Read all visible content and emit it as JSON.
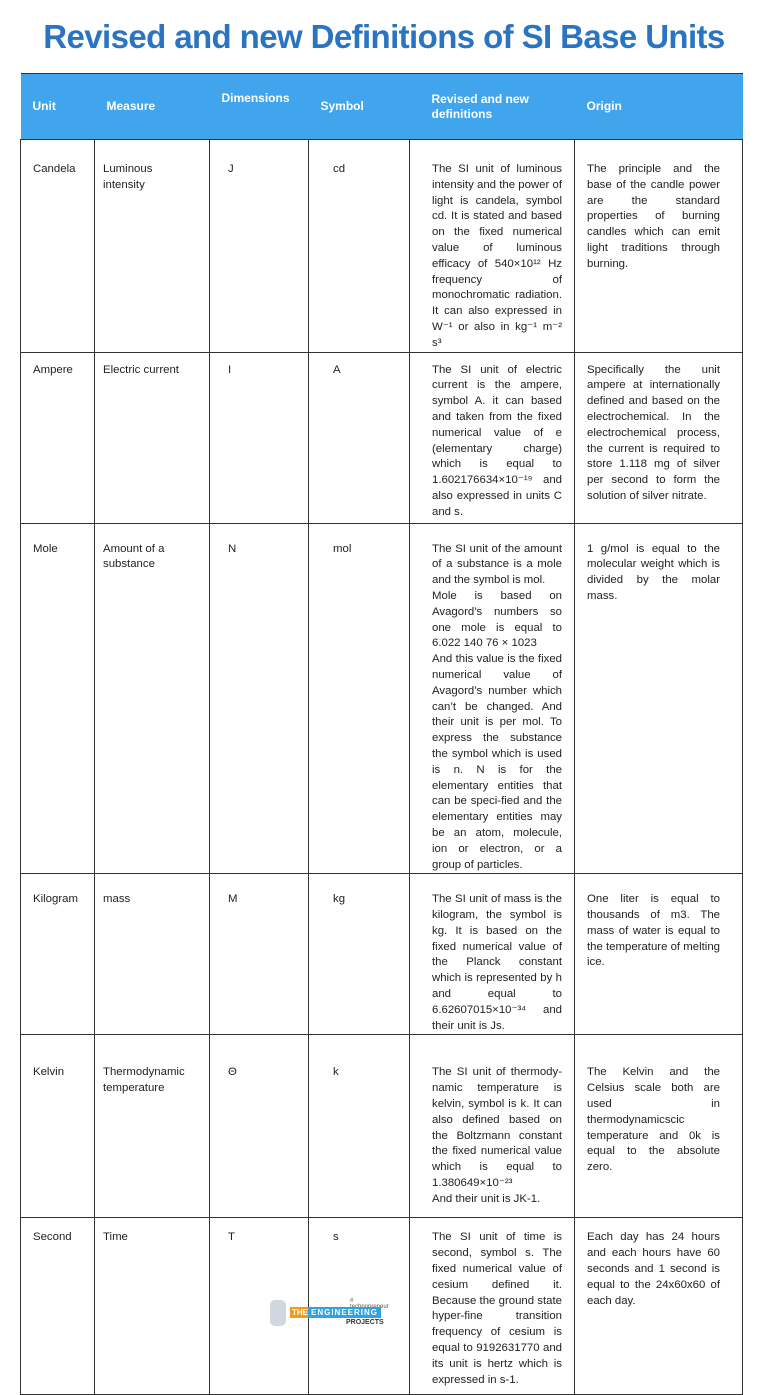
{
  "title": "Revised and new Definitions of SI Base Units",
  "headers": {
    "unit": "Unit",
    "measure": "Measure",
    "dimensions": "Dimensions",
    "symbol": "Symbol",
    "definition": "Revised and new definitions",
    "origin": "Origin"
  },
  "rows": [
    {
      "unit": "Candela",
      "measure": "Luminous intensity",
      "dimension": "J",
      "symbol": "cd",
      "definition": "The SI unit of luminous intensity and the power of light is candela, symbol cd. It is stated and based on the fixed numerical value of luminous efficacy of 540×10¹² Hz frequency of monochromatic radiation. It can also expressed in W⁻¹ or also in kg⁻¹ m⁻² s³",
      "origin": "The principle and the base of the candle power are the standard properties of burning candles which can emit light traditions through burning."
    },
    {
      "unit": "Ampere",
      "measure": "Electric current",
      "dimension": "I",
      "symbol": "A",
      "definition": "The SI unit of electric current is the ampere, symbol A. it can based and taken from the fixed numerical value of e (elementary charge) which is equal to 1.602176634×10⁻¹⁹ and also expressed in units C and s.",
      "origin": "Specifically the unit ampere at internationally defined and based on the electrochemical. In the electrochemical process, the current is required to store 1.118 mg of silver per second to form the solution of silver nitrate."
    },
    {
      "unit": "Mole",
      "measure": "Amount of a substance",
      "dimension": "N",
      "symbol": "mol",
      "definition": "The SI unit of the amount of a substance is a mole and the symbol is mol.\nMole is based on Avagord’s numbers so one mole is equal to 6.022 140 76 × 1023\nAnd this value is the fixed numerical value of Avagord’s number which can’t be changed. And their unit is per mol. To express the substance the symbol which is used is n. N is for the elementary entities that can be speci-fied and the elementary entities may be an atom, molecule, ion or electron, or a group of particles.",
      "origin": "1 g/mol is equal to the molecular weight which is divided by the molar mass."
    },
    {
      "unit": "Kilogram",
      "measure": "mass",
      "dimension": "M",
      "symbol": "kg",
      "definition": "The SI unit of mass is the kilogram, the symbol is kg. It is based on the fixed numerical value of the Planck constant which is represented by h and equal to 6.62607015×10⁻³⁴ and their unit is Js.",
      "origin": "One liter is equal to thousands of m3. The mass of water is equal to the temperature of melting ice."
    },
    {
      "unit": "Kelvin",
      "measure": "Thermodynamic temperature",
      "dimension": "Θ",
      "symbol": "k",
      "definition": "The SI unit of thermody-namic temperature is kelvin, symbol is k. It can also defined based on the Boltzmann constant the fixed numerical value which is equal to 1.380649×10⁻²³\nAnd their unit is JK-1.",
      "origin": "The Kelvin and the Celsius scale both are used in thermodynamicscic temperature and 0k is equal to the absolute zero."
    },
    {
      "unit": "Second",
      "measure": "Time",
      "dimension": "T",
      "symbol": "s",
      "definition": "The SI unit of time is second, symbol s. The fixed numerical value of cesium defined it. Because the ground state hyper-fine transition frequency of cesium is equal to 9192631770 and its unit is hertz which is expressed in s-1.",
      "origin": "Each day has 24 hours and each hours have 60 seconds and 1 second is equal to the 24x60x60 of each day."
    }
  ],
  "logo": {
    "tagline": "# technopreneur",
    "the": "THE",
    "engineering": "ENGINEERING",
    "projects": "PROJECTS"
  },
  "colors": {
    "title": "#2a74c2",
    "header_bg": "#41a5ee",
    "header_text": "#ffffff"
  }
}
